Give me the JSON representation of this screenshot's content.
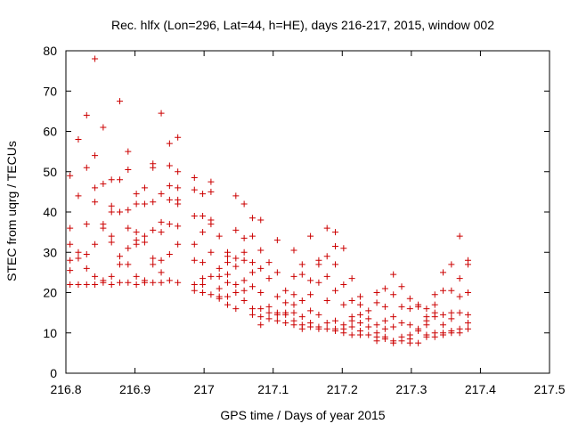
{
  "chart_data": {
    "type": "scatter",
    "title": "Rec. hlfx (Lon=296, Lat=44, h=HE), days 216-217, 2015, window 002",
    "xlabel": "GPS time / Days of year 2015",
    "ylabel": "STEC from uqrg / TECUs",
    "xlim": [
      216.8,
      217.5
    ],
    "ylim": [
      0,
      80
    ],
    "x_ticks": [
      "216.8",
      "216.9",
      "217",
      "217.1",
      "217.2",
      "217.3",
      "217.4",
      "217.5"
    ],
    "y_ticks": [
      "0",
      "10",
      "20",
      "30",
      "40",
      "50",
      "60",
      "70",
      "80"
    ],
    "marker": "+",
    "marker_color": "#cc0000",
    "grid": false,
    "points": [
      [
        216.806,
        49
      ],
      [
        216.806,
        36
      ],
      [
        216.806,
        32
      ],
      [
        216.806,
        28
      ],
      [
        216.806,
        25.5
      ],
      [
        216.806,
        22
      ],
      [
        216.818,
        58
      ],
      [
        216.818,
        44
      ],
      [
        216.818,
        30
      ],
      [
        216.818,
        28.5
      ],
      [
        216.818,
        22
      ],
      [
        216.83,
        64
      ],
      [
        216.83,
        51
      ],
      [
        216.83,
        37
      ],
      [
        216.83,
        29.5
      ],
      [
        216.83,
        26
      ],
      [
        216.83,
        22
      ],
      [
        216.842,
        78
      ],
      [
        216.842,
        54
      ],
      [
        216.842,
        46
      ],
      [
        216.842,
        42.5
      ],
      [
        216.842,
        32
      ],
      [
        216.842,
        24
      ],
      [
        216.842,
        22
      ],
      [
        216.854,
        61
      ],
      [
        216.854,
        47
      ],
      [
        216.854,
        37
      ],
      [
        216.854,
        36
      ],
      [
        216.854,
        23
      ],
      [
        216.854,
        22.5
      ],
      [
        216.866,
        48
      ],
      [
        216.866,
        41.5
      ],
      [
        216.866,
        40
      ],
      [
        216.866,
        34
      ],
      [
        216.866,
        32.5
      ],
      [
        216.866,
        24
      ],
      [
        216.866,
        22
      ],
      [
        216.878,
        67.5
      ],
      [
        216.878,
        48
      ],
      [
        216.878,
        40
      ],
      [
        216.878,
        29
      ],
      [
        216.878,
        27
      ],
      [
        216.878,
        22.5
      ],
      [
        216.89,
        55
      ],
      [
        216.89,
        50.5
      ],
      [
        216.89,
        40.5
      ],
      [
        216.89,
        36
      ],
      [
        216.89,
        31
      ],
      [
        216.89,
        27
      ],
      [
        216.89,
        22.5
      ],
      [
        216.902,
        44.5
      ],
      [
        216.902,
        42
      ],
      [
        216.902,
        35
      ],
      [
        216.902,
        33
      ],
      [
        216.902,
        32
      ],
      [
        216.902,
        24
      ],
      [
        216.902,
        22
      ],
      [
        216.914,
        46
      ],
      [
        216.914,
        42
      ],
      [
        216.914,
        34
      ],
      [
        216.914,
        32.5
      ],
      [
        216.914,
        23
      ],
      [
        216.914,
        22.5
      ],
      [
        216.926,
        52
      ],
      [
        216.926,
        51
      ],
      [
        216.926,
        42.5
      ],
      [
        216.926,
        35.5
      ],
      [
        216.926,
        28.5
      ],
      [
        216.926,
        27
      ],
      [
        216.926,
        22.5
      ],
      [
        216.938,
        64.5
      ],
      [
        216.938,
        44.5
      ],
      [
        216.938,
        37.5
      ],
      [
        216.938,
        35
      ],
      [
        216.938,
        28
      ],
      [
        216.938,
        25
      ],
      [
        216.938,
        22.5
      ],
      [
        216.95,
        57
      ],
      [
        216.95,
        51.5
      ],
      [
        216.95,
        46.5
      ],
      [
        216.95,
        43
      ],
      [
        216.95,
        37
      ],
      [
        216.95,
        29.5
      ],
      [
        216.95,
        23
      ],
      [
        216.962,
        58.5
      ],
      [
        216.962,
        50
      ],
      [
        216.962,
        46
      ],
      [
        216.962,
        43
      ],
      [
        216.962,
        42
      ],
      [
        216.962,
        36.5
      ],
      [
        216.962,
        32
      ],
      [
        216.962,
        22.5
      ],
      [
        216.986,
        48.5
      ],
      [
        216.986,
        45.5
      ],
      [
        216.986,
        39
      ],
      [
        216.986,
        32
      ],
      [
        216.986,
        28
      ],
      [
        216.986,
        22
      ],
      [
        216.986,
        20.5
      ],
      [
        216.998,
        44.5
      ],
      [
        216.998,
        39
      ],
      [
        216.998,
        35
      ],
      [
        216.998,
        27.5
      ],
      [
        216.998,
        23.5
      ],
      [
        216.998,
        22
      ],
      [
        216.998,
        20
      ],
      [
        217.01,
        47.5
      ],
      [
        217.01,
        45
      ],
      [
        217.01,
        38
      ],
      [
        217.01,
        37
      ],
      [
        217.01,
        30
      ],
      [
        217.01,
        24
      ],
      [
        217.01,
        19.5
      ],
      [
        217.022,
        34
      ],
      [
        217.022,
        26
      ],
      [
        217.022,
        24
      ],
      [
        217.022,
        21
      ],
      [
        217.022,
        19
      ],
      [
        217.022,
        18.5
      ],
      [
        217.034,
        30
      ],
      [
        217.034,
        29
      ],
      [
        217.034,
        27.5
      ],
      [
        217.034,
        24.5
      ],
      [
        217.034,
        22.5
      ],
      [
        217.034,
        19
      ],
      [
        217.034,
        17
      ],
      [
        217.046,
        44
      ],
      [
        217.046,
        35.5
      ],
      [
        217.046,
        28.5
      ],
      [
        217.046,
        26.5
      ],
      [
        217.046,
        22
      ],
      [
        217.046,
        20
      ],
      [
        217.046,
        16
      ],
      [
        217.058,
        42
      ],
      [
        217.058,
        33.5
      ],
      [
        217.058,
        30
      ],
      [
        217.058,
        28
      ],
      [
        217.058,
        23
      ],
      [
        217.058,
        20.5
      ],
      [
        217.058,
        18
      ],
      [
        217.07,
        38.5
      ],
      [
        217.07,
        34
      ],
      [
        217.07,
        27.5
      ],
      [
        217.07,
        25
      ],
      [
        217.07,
        21.5
      ],
      [
        217.07,
        16
      ],
      [
        217.07,
        14.5
      ],
      [
        217.082,
        38
      ],
      [
        217.082,
        30.5
      ],
      [
        217.082,
        26
      ],
      [
        217.082,
        20
      ],
      [
        217.082,
        16
      ],
      [
        217.082,
        14
      ],
      [
        217.082,
        12
      ],
      [
        217.094,
        27.5
      ],
      [
        217.094,
        23.5
      ],
      [
        217.094,
        16.5
      ],
      [
        217.094,
        15
      ],
      [
        217.094,
        13.5
      ],
      [
        217.106,
        33
      ],
      [
        217.106,
        25
      ],
      [
        217.106,
        19
      ],
      [
        217.106,
        15
      ],
      [
        217.106,
        14.5
      ],
      [
        217.106,
        13
      ],
      [
        217.118,
        20.5
      ],
      [
        217.118,
        17.5
      ],
      [
        217.118,
        15
      ],
      [
        217.118,
        14.5
      ],
      [
        217.118,
        12.5
      ],
      [
        217.13,
        30.5
      ],
      [
        217.13,
        24
      ],
      [
        217.13,
        19.5
      ],
      [
        217.13,
        17
      ],
      [
        217.13,
        15
      ],
      [
        217.13,
        13
      ],
      [
        217.13,
        12
      ],
      [
        217.142,
        27
      ],
      [
        217.142,
        24.5
      ],
      [
        217.142,
        18
      ],
      [
        217.142,
        14
      ],
      [
        217.142,
        12
      ],
      [
        217.142,
        11
      ],
      [
        217.154,
        34
      ],
      [
        217.154,
        23
      ],
      [
        217.154,
        19.5
      ],
      [
        217.154,
        15.5
      ],
      [
        217.154,
        12.5
      ],
      [
        217.154,
        11.5
      ],
      [
        217.166,
        28
      ],
      [
        217.166,
        27
      ],
      [
        217.166,
        22.5
      ],
      [
        217.166,
        14.5
      ],
      [
        217.166,
        11.5
      ],
      [
        217.166,
        11
      ],
      [
        217.178,
        36
      ],
      [
        217.178,
        29
      ],
      [
        217.178,
        24
      ],
      [
        217.178,
        18
      ],
      [
        217.178,
        12.5
      ],
      [
        217.178,
        11
      ],
      [
        217.19,
        35
      ],
      [
        217.19,
        31.5
      ],
      [
        217.19,
        27
      ],
      [
        217.19,
        20.5
      ],
      [
        217.19,
        13
      ],
      [
        217.19,
        11
      ],
      [
        217.19,
        10.5
      ],
      [
        217.202,
        31
      ],
      [
        217.202,
        22
      ],
      [
        217.202,
        17
      ],
      [
        217.202,
        12
      ],
      [
        217.202,
        11
      ],
      [
        217.202,
        10
      ],
      [
        217.214,
        23.5
      ],
      [
        217.214,
        18
      ],
      [
        217.214,
        14
      ],
      [
        217.214,
        13
      ],
      [
        217.214,
        11.5
      ],
      [
        217.214,
        9.5
      ],
      [
        217.226,
        19
      ],
      [
        217.226,
        17
      ],
      [
        217.226,
        14.5
      ],
      [
        217.226,
        12.5
      ],
      [
        217.226,
        10.5
      ],
      [
        217.226,
        9.5
      ],
      [
        217.238,
        15.5
      ],
      [
        217.238,
        13.5
      ],
      [
        217.238,
        11.5
      ],
      [
        217.238,
        9.5
      ],
      [
        217.25,
        20
      ],
      [
        217.25,
        17.5
      ],
      [
        217.25,
        12
      ],
      [
        217.25,
        10
      ],
      [
        217.25,
        9
      ],
      [
        217.25,
        8
      ],
      [
        217.262,
        21
      ],
      [
        217.262,
        16.5
      ],
      [
        217.262,
        13
      ],
      [
        217.262,
        11
      ],
      [
        217.262,
        9
      ],
      [
        217.262,
        8.5
      ],
      [
        217.274,
        24.5
      ],
      [
        217.274,
        19.5
      ],
      [
        217.274,
        14
      ],
      [
        217.274,
        11.5
      ],
      [
        217.274,
        8
      ],
      [
        217.274,
        7.5
      ],
      [
        217.286,
        21.5
      ],
      [
        217.286,
        16.5
      ],
      [
        217.286,
        12.5
      ],
      [
        217.286,
        9
      ],
      [
        217.286,
        8
      ],
      [
        217.298,
        18.5
      ],
      [
        217.298,
        16
      ],
      [
        217.298,
        12
      ],
      [
        217.298,
        9.5
      ],
      [
        217.298,
        8.5
      ],
      [
        217.298,
        7.5
      ],
      [
        217.31,
        17
      ],
      [
        217.31,
        16.5
      ],
      [
        217.31,
        11
      ],
      [
        217.31,
        10.5
      ],
      [
        217.31,
        7.5
      ],
      [
        217.322,
        16
      ],
      [
        217.322,
        14
      ],
      [
        217.322,
        13
      ],
      [
        217.322,
        12
      ],
      [
        217.322,
        9.5
      ],
      [
        217.322,
        9
      ],
      [
        217.334,
        19.5
      ],
      [
        217.334,
        17
      ],
      [
        217.334,
        15
      ],
      [
        217.334,
        14
      ],
      [
        217.334,
        10
      ],
      [
        217.334,
        9
      ],
      [
        217.346,
        25
      ],
      [
        217.346,
        20.5
      ],
      [
        217.346,
        14.5
      ],
      [
        217.346,
        12
      ],
      [
        217.346,
        10
      ],
      [
        217.346,
        9.5
      ],
      [
        217.358,
        27
      ],
      [
        217.358,
        20.5
      ],
      [
        217.358,
        15
      ],
      [
        217.358,
        13.5
      ],
      [
        217.358,
        10.5
      ],
      [
        217.358,
        10
      ],
      [
        217.37,
        34
      ],
      [
        217.37,
        23.5
      ],
      [
        217.37,
        19
      ],
      [
        217.37,
        15
      ],
      [
        217.37,
        11
      ],
      [
        217.37,
        10
      ],
      [
        217.382,
        28
      ],
      [
        217.382,
        27
      ],
      [
        217.382,
        20
      ],
      [
        217.382,
        14.5
      ],
      [
        217.382,
        12.5
      ],
      [
        217.382,
        11
      ]
    ]
  }
}
